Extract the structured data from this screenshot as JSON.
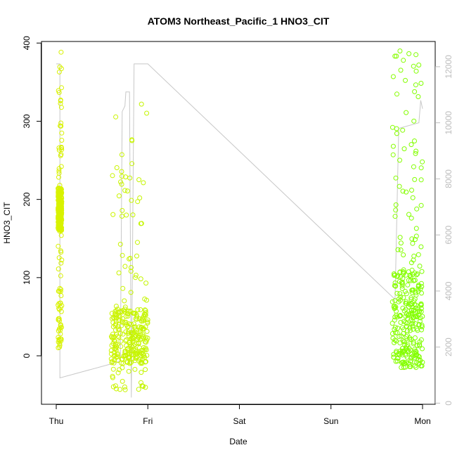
{
  "chart_data": {
    "type": "scatter",
    "title": "ATOM3 Northeast_Pacific_1 HNO3_CIT",
    "xlabel": "Date",
    "ylabel": "HNO3_CIT",
    "x_categories": [
      "Thu",
      "Fri",
      "Sat",
      "Sun",
      "Mon"
    ],
    "xlim": [
      -0.05,
      4.1
    ],
    "ylim": [
      -62,
      402
    ],
    "y_ticks": [
      "0",
      "100",
      "200",
      "300",
      "400"
    ],
    "y2_ticks": [
      "0",
      "2000",
      "4000",
      "6000",
      "8000",
      "10000",
      "12000"
    ],
    "y2lim": [
      -40,
      12900
    ],
    "series": [
      {
        "marker": "open-circle",
        "color_gradient": [
          "#d9f200",
          "#80ff00"
        ],
        "clusters": [
          {
            "x_range": [
              0.02,
              0.06
            ],
            "y_min": 10,
            "y_max": 390,
            "dense_band": [
              160,
              215
            ]
          },
          {
            "x_range": [
              0.6,
              1.0
            ],
            "y_min": -45,
            "y_max": 325,
            "dense_band": [
              -10,
              60
            ]
          },
          {
            "x_range": [
              3.67,
              4.0
            ],
            "y_min": -15,
            "y_max": 390,
            "dense_band": [
              -10,
              110
            ]
          }
        ]
      },
      {
        "name": "",
        "type": "line",
        "axis": "right",
        "color": "#c8c8c8",
        "points": [
          [
            0.0,
            12100
          ],
          [
            0.04,
            12100
          ],
          [
            0.04,
            900
          ],
          [
            0.6,
            1400
          ],
          [
            0.7,
            1500
          ],
          [
            0.72,
            10400
          ],
          [
            0.75,
            10600
          ],
          [
            0.76,
            11100
          ],
          [
            0.8,
            11100
          ],
          [
            0.82,
            200
          ],
          [
            0.85,
            12100
          ],
          [
            0.9,
            12100
          ],
          [
            1.0,
            12100
          ],
          [
            3.7,
            3700
          ],
          [
            3.74,
            9800
          ],
          [
            3.96,
            10000
          ],
          [
            3.98,
            10800
          ],
          [
            4.0,
            10500
          ]
        ]
      }
    ]
  }
}
